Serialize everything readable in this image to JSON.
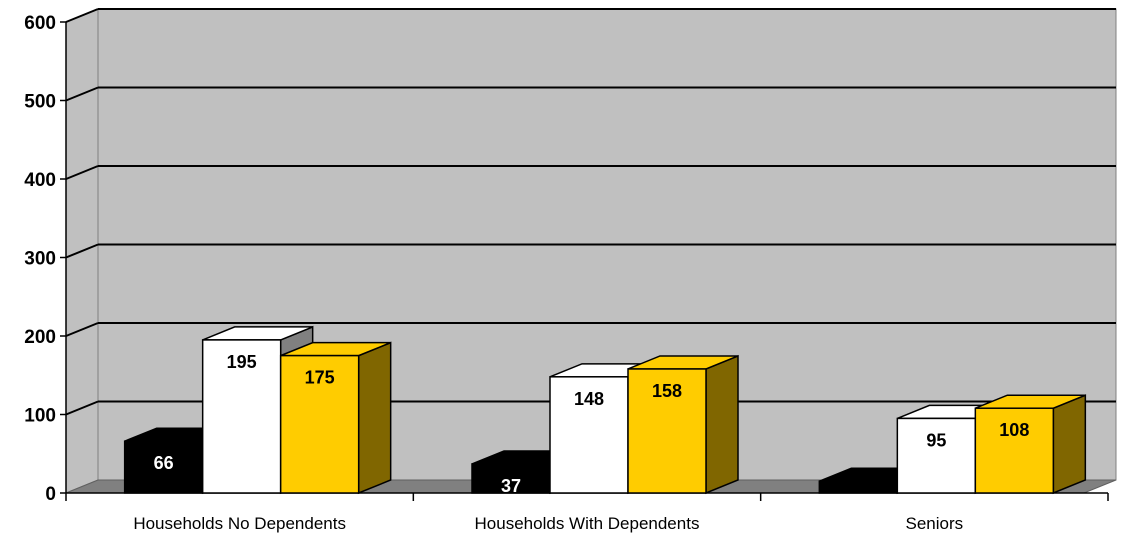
{
  "chart_data": {
    "type": "bar",
    "title": "",
    "xlabel": "",
    "ylabel": "",
    "categories": [
      "Households No Dependents",
      "Households With Dependents",
      "Seniors"
    ],
    "series": [
      {
        "values": [
          66,
          37,
          15
        ],
        "color": "#000000",
        "side_color": "#333333",
        "top_color": "#000000",
        "label_color": "#ffffff"
      },
      {
        "values": [
          195,
          148,
          95
        ],
        "color": "#ffffff",
        "side_color": "#808080",
        "top_color": "#ffffff",
        "label_color": "#000000"
      },
      {
        "values": [
          175,
          158,
          108
        ],
        "color": "#ffcc00",
        "side_color": "#806600",
        "top_color": "#ffcc00",
        "label_color": "#000000"
      }
    ],
    "data_labels": true,
    "ylim": [
      0,
      600
    ],
    "yticks": [
      "0",
      "100",
      "200",
      "300",
      "400",
      "500",
      "600"
    ],
    "grid": true,
    "legend": "none",
    "wall_color": "#c0c0c0",
    "floor_color": "#808080"
  }
}
